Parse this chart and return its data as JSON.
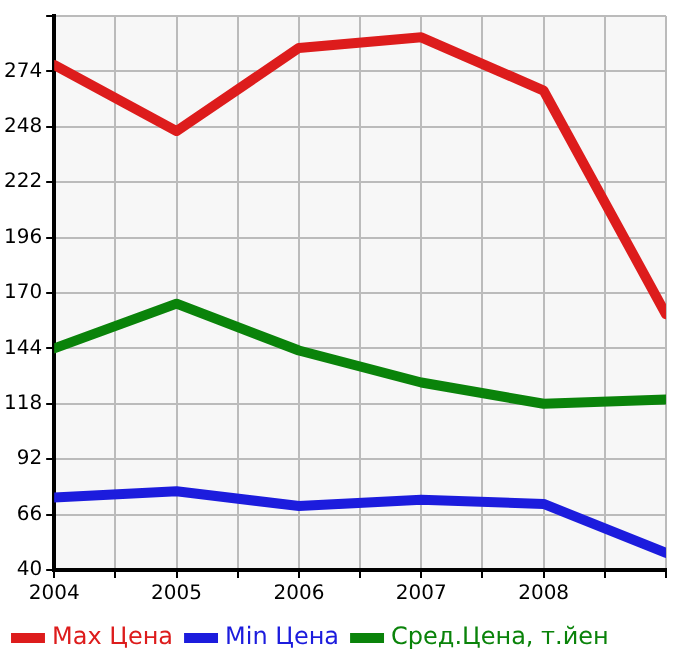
{
  "chart_data": {
    "type": "line",
    "x": [
      2004,
      2005,
      2006,
      2007,
      2008,
      2009
    ],
    "series": [
      {
        "name": "Max Цена",
        "color": "#dd1c1c",
        "values": [
          277,
          246,
          285,
          290,
          265,
          160
        ]
      },
      {
        "name": "Min Цена",
        "color": "#1c1cdd",
        "values": [
          74,
          77,
          70,
          73,
          71,
          48
        ]
      },
      {
        "name": "Сред.Цена, т.йен",
        "color": "#0a830a",
        "values": [
          144,
          165,
          143,
          128,
          118,
          120
        ]
      }
    ],
    "xlim": [
      2004,
      2009
    ],
    "xticks": [
      2004,
      {
        "value": 2004.5,
        "label": null
      },
      2005,
      {
        "value": 2005.5,
        "label": null
      },
      2006,
      {
        "value": 2006.5,
        "label": null
      },
      2007,
      {
        "value": 2007.5,
        "label": null
      },
      2008,
      {
        "value": 2008.5,
        "label": null
      },
      {
        "value": 2009,
        "label": null
      }
    ],
    "ylim": [
      40,
      300
    ],
    "yticks": [
      40,
      66,
      92,
      118,
      144,
      170,
      196,
      222,
      248,
      274,
      {
        "value": 300,
        "label": null
      }
    ],
    "grid": true,
    "legend": "bottom",
    "marker": "none",
    "line_style": "solid"
  }
}
